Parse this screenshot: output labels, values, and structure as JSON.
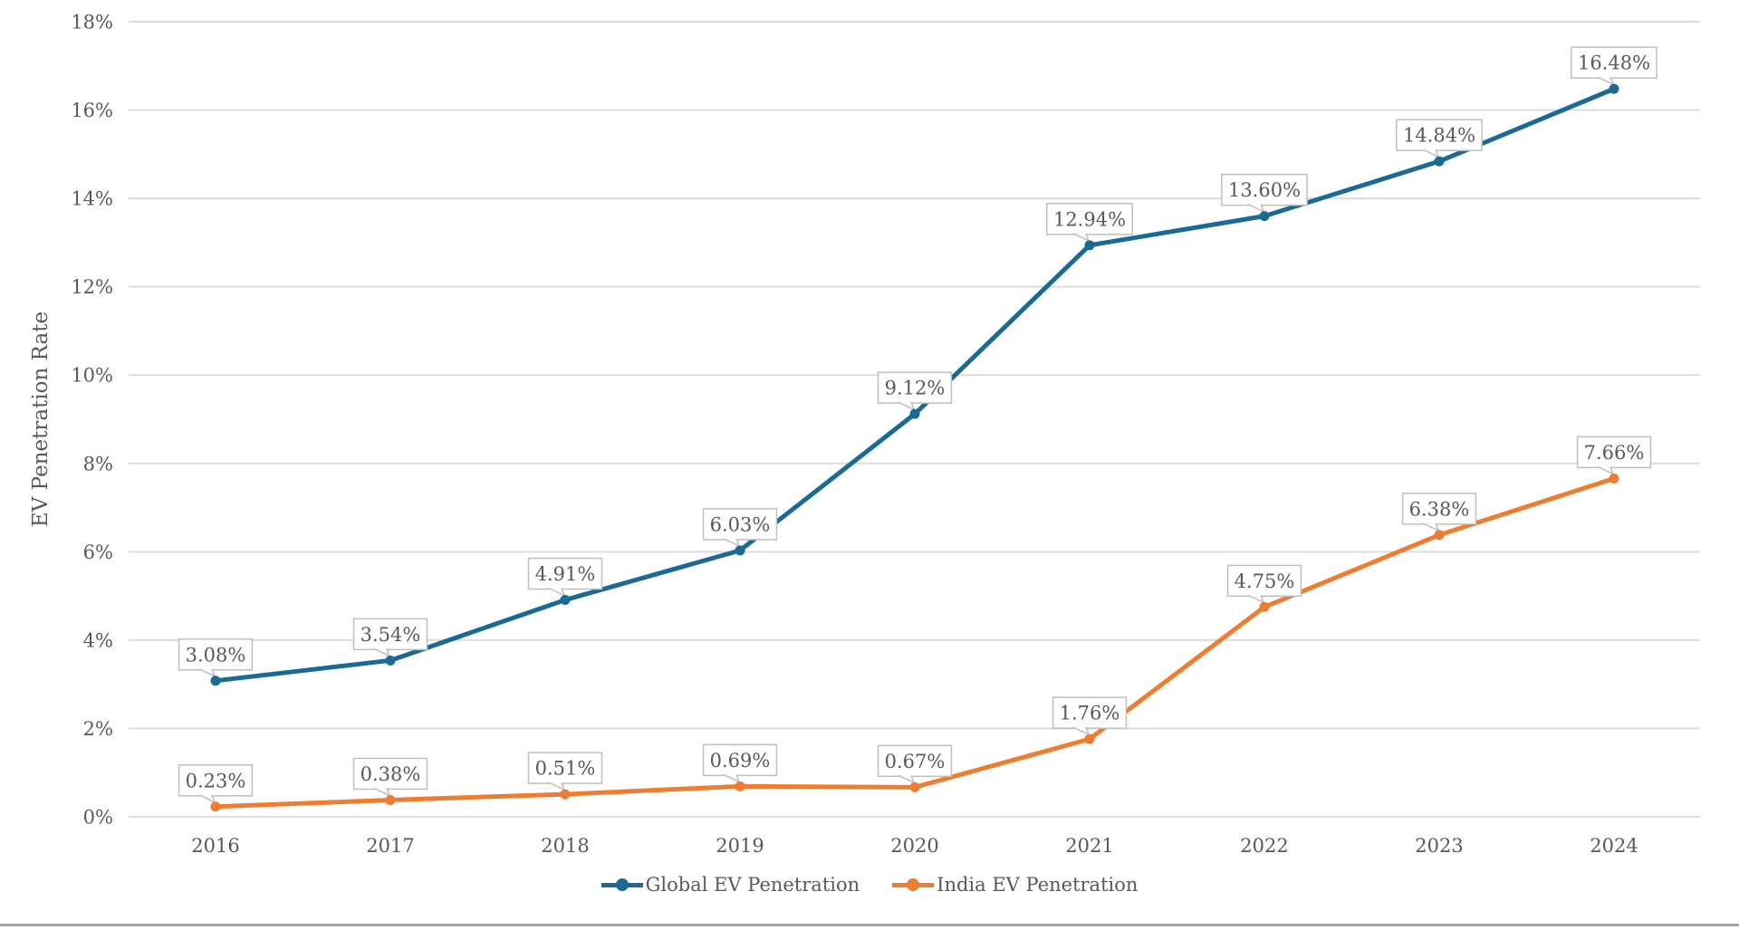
{
  "chart_data": {
    "type": "line",
    "title": "",
    "xlabel": "",
    "ylabel": "EV Penetration Rate",
    "x_categories": [
      "2016",
      "2017",
      "2018",
      "2019",
      "2020",
      "2021",
      "2022",
      "2023",
      "2024"
    ],
    "ylim": [
      0,
      18
    ],
    "ytick_step": 2,
    "ytick_labels": [
      "0%",
      "2%",
      "4%",
      "6%",
      "8%",
      "10%",
      "12%",
      "14%",
      "16%",
      "18%"
    ],
    "grid": true,
    "legend_position": "bottom",
    "series": [
      {
        "name": "Global EV Penetration",
        "color": "#1B6A95",
        "values": [
          3.08,
          3.54,
          4.91,
          6.03,
          9.12,
          12.94,
          13.6,
          14.84,
          16.48
        ],
        "data_labels": [
          "3.08%",
          "3.54%",
          "4.91%",
          "6.03%",
          "9.12%",
          "12.94%",
          "13.60%",
          "14.84%",
          "16.48%"
        ]
      },
      {
        "name": "India EV Penetration",
        "color": "#ED7D31",
        "values": [
          0.23,
          0.38,
          0.51,
          0.69,
          0.67,
          1.76,
          4.75,
          6.38,
          7.66
        ],
        "data_labels": [
          "0.23%",
          "0.38%",
          "0.51%",
          "0.69%",
          "0.67%",
          "1.76%",
          "4.75%",
          "6.38%",
          "7.66%"
        ]
      }
    ]
  },
  "styles": {
    "text_color": "#595959",
    "grid_color": "#DCDCDC",
    "callout_border_color": "#BFBFBF",
    "callout_fill": "#FFFFFF",
    "background": "#FFFFFF",
    "bottom_border_color": "#A6A6A6"
  }
}
